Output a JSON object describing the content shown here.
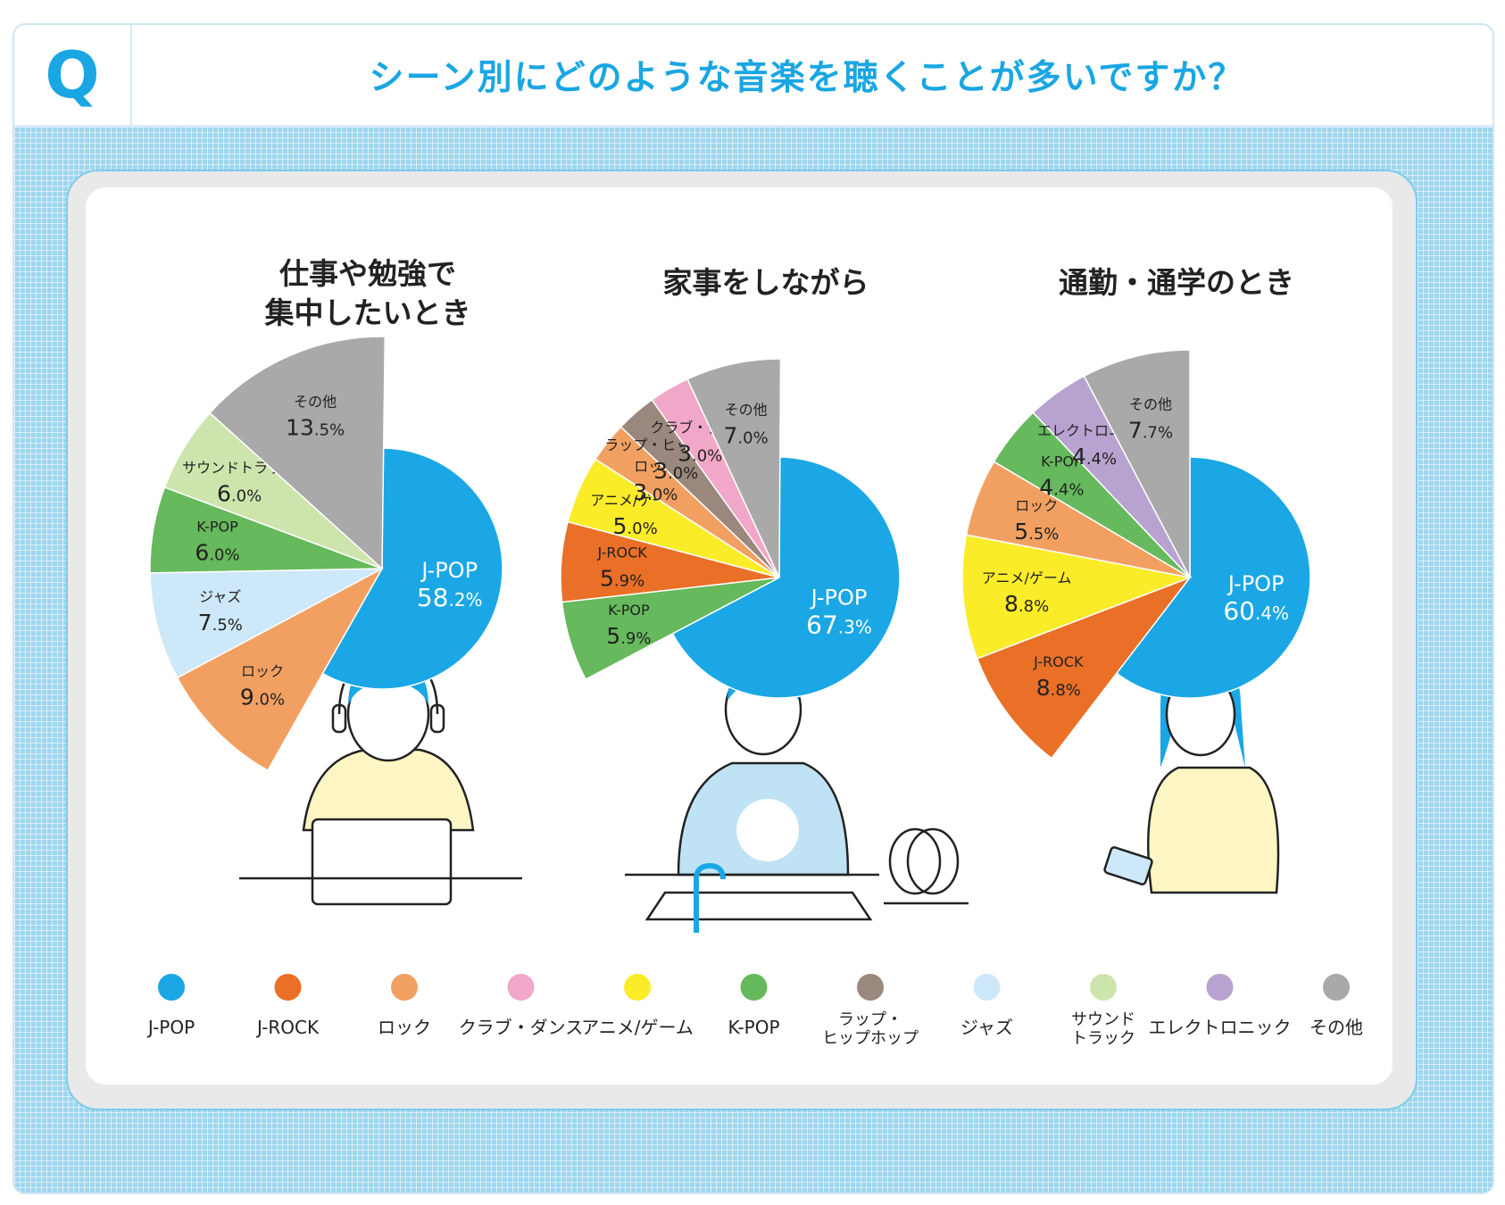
{
  "header": {
    "q_label": "Q",
    "title": "シーン別にどのような音楽を聴くことが多いですか？"
  },
  "colors": {
    "J-POP": "#1ba7e5",
    "J-ROCK": "#ea6f27",
    "ロック": "#f2a062",
    "クラブ・ダンス": "#f1a7c7",
    "アニメ/ゲーム": "#fbec29",
    "K-POP": "#66b95c",
    "ラップ・ヒップホップ": "#9a877d",
    "ジャズ": "#cde8f8",
    "サウンドトラック": "#cde5ad",
    "エレクトロニック": "#b8a2cf",
    "その他": "#a9a9a9"
  },
  "chart_data": [
    {
      "type": "pie",
      "title": "仕事や勉強で集中したいとき",
      "title_lines": [
        "仕事や勉強で",
        "集中したいとき"
      ],
      "slices": [
        {
          "label": "J-POP",
          "display_label": "J-POP",
          "value": 58.2,
          "value_int": "58",
          "value_dec": ".2%"
        },
        {
          "label": "ロック",
          "display_label": "ロック",
          "value": 9.0,
          "value_int": "9",
          "value_dec": ".0%"
        },
        {
          "label": "ジャズ",
          "display_label": "ジャズ",
          "value": 7.5,
          "value_int": "7",
          "value_dec": ".5%"
        },
        {
          "label": "K-POP",
          "display_label": "K-POP",
          "value": 6.0,
          "value_int": "6",
          "value_dec": ".0%"
        },
        {
          "label": "サウンドトラック",
          "display_label": "サウンドトラック",
          "value": 6.0,
          "value_int": "6",
          "value_dec": ".0%"
        },
        {
          "label": "その他",
          "display_label": "その他",
          "value": 13.5,
          "value_int": "13",
          "value_dec": ".5%"
        }
      ]
    },
    {
      "type": "pie",
      "title": "家事をしながら",
      "title_lines": [
        "家事をしながら"
      ],
      "slices": [
        {
          "label": "J-POP",
          "display_label": "J-POP",
          "value": 67.3,
          "value_int": "67",
          "value_dec": ".3%"
        },
        {
          "label": "K-POP",
          "display_label": "K-POP",
          "value": 5.9,
          "value_int": "5",
          "value_dec": ".9%"
        },
        {
          "label": "J-ROCK",
          "display_label": "J-ROCK",
          "value": 5.9,
          "value_int": "5",
          "value_dec": ".9%"
        },
        {
          "label": "アニメ/ゲーム",
          "display_label": "アニメ/ゲーム",
          "value": 5.0,
          "value_int": "5",
          "value_dec": ".0%"
        },
        {
          "label": "ロック",
          "display_label": "ロック",
          "value": 3.0,
          "value_int": "3",
          "value_dec": ".0%"
        },
        {
          "label": "ラップ・ヒップホップ",
          "display_label": "ラップ・ヒップホップ",
          "value": 3.0,
          "value_int": "3",
          "value_dec": ".0%"
        },
        {
          "label": "クラブ・ダンス",
          "display_label": "クラブ・ダンス",
          "value": 3.0,
          "value_int": "3",
          "value_dec": ".0%"
        },
        {
          "label": "その他",
          "display_label": "その他",
          "value": 7.0,
          "value_int": "7",
          "value_dec": ".0%"
        }
      ]
    },
    {
      "type": "pie",
      "title": "通勤・通学のとき",
      "title_lines": [
        "通勤・通学のとき"
      ],
      "slices": [
        {
          "label": "J-POP",
          "display_label": "J-POP",
          "value": 60.4,
          "value_int": "60",
          "value_dec": ".4%"
        },
        {
          "label": "J-ROCK",
          "display_label": "J-ROCK",
          "value": 8.8,
          "value_int": "8",
          "value_dec": ".8%"
        },
        {
          "label": "アニメ/ゲーム",
          "display_label": "アニメ/ゲーム",
          "value": 8.8,
          "value_int": "8",
          "value_dec": ".8%"
        },
        {
          "label": "ロック",
          "display_label": "ロック",
          "value": 5.5,
          "value_int": "5",
          "value_dec": ".5%"
        },
        {
          "label": "K-POP",
          "display_label": "K-POP",
          "value": 4.4,
          "value_int": "4",
          "value_dec": ".4%"
        },
        {
          "label": "エレクトロニック",
          "display_label": "エレクトロニック",
          "value": 4.4,
          "value_int": "4",
          "value_dec": ".4%"
        },
        {
          "label": "その他",
          "display_label": "その他",
          "value": 7.7,
          "value_int": "7",
          "value_dec": ".7%"
        }
      ]
    }
  ],
  "legend": [
    {
      "label": "J-POP",
      "lines": [
        "J-POP"
      ]
    },
    {
      "label": "J-ROCK",
      "lines": [
        "J-ROCK"
      ]
    },
    {
      "label": "ロック",
      "lines": [
        "ロック"
      ]
    },
    {
      "label": "クラブ・ダンス",
      "lines": [
        "クラブ・ダンス"
      ]
    },
    {
      "label": "アニメ/ゲーム",
      "lines": [
        "アニメ/ゲーム"
      ]
    },
    {
      "label": "K-POP",
      "lines": [
        "K-POP"
      ]
    },
    {
      "label": "ラップ・ヒップホップ",
      "lines": [
        "ラップ・",
        "ヒップホップ"
      ]
    },
    {
      "label": "ジャズ",
      "lines": [
        "ジャズ"
      ]
    },
    {
      "label": "サウンドトラック",
      "lines": [
        "サウンド",
        "トラック"
      ]
    },
    {
      "label": "エレクトロニック",
      "lines": [
        "エレクトロニック"
      ]
    },
    {
      "label": "その他",
      "lines": [
        "その他"
      ]
    }
  ]
}
